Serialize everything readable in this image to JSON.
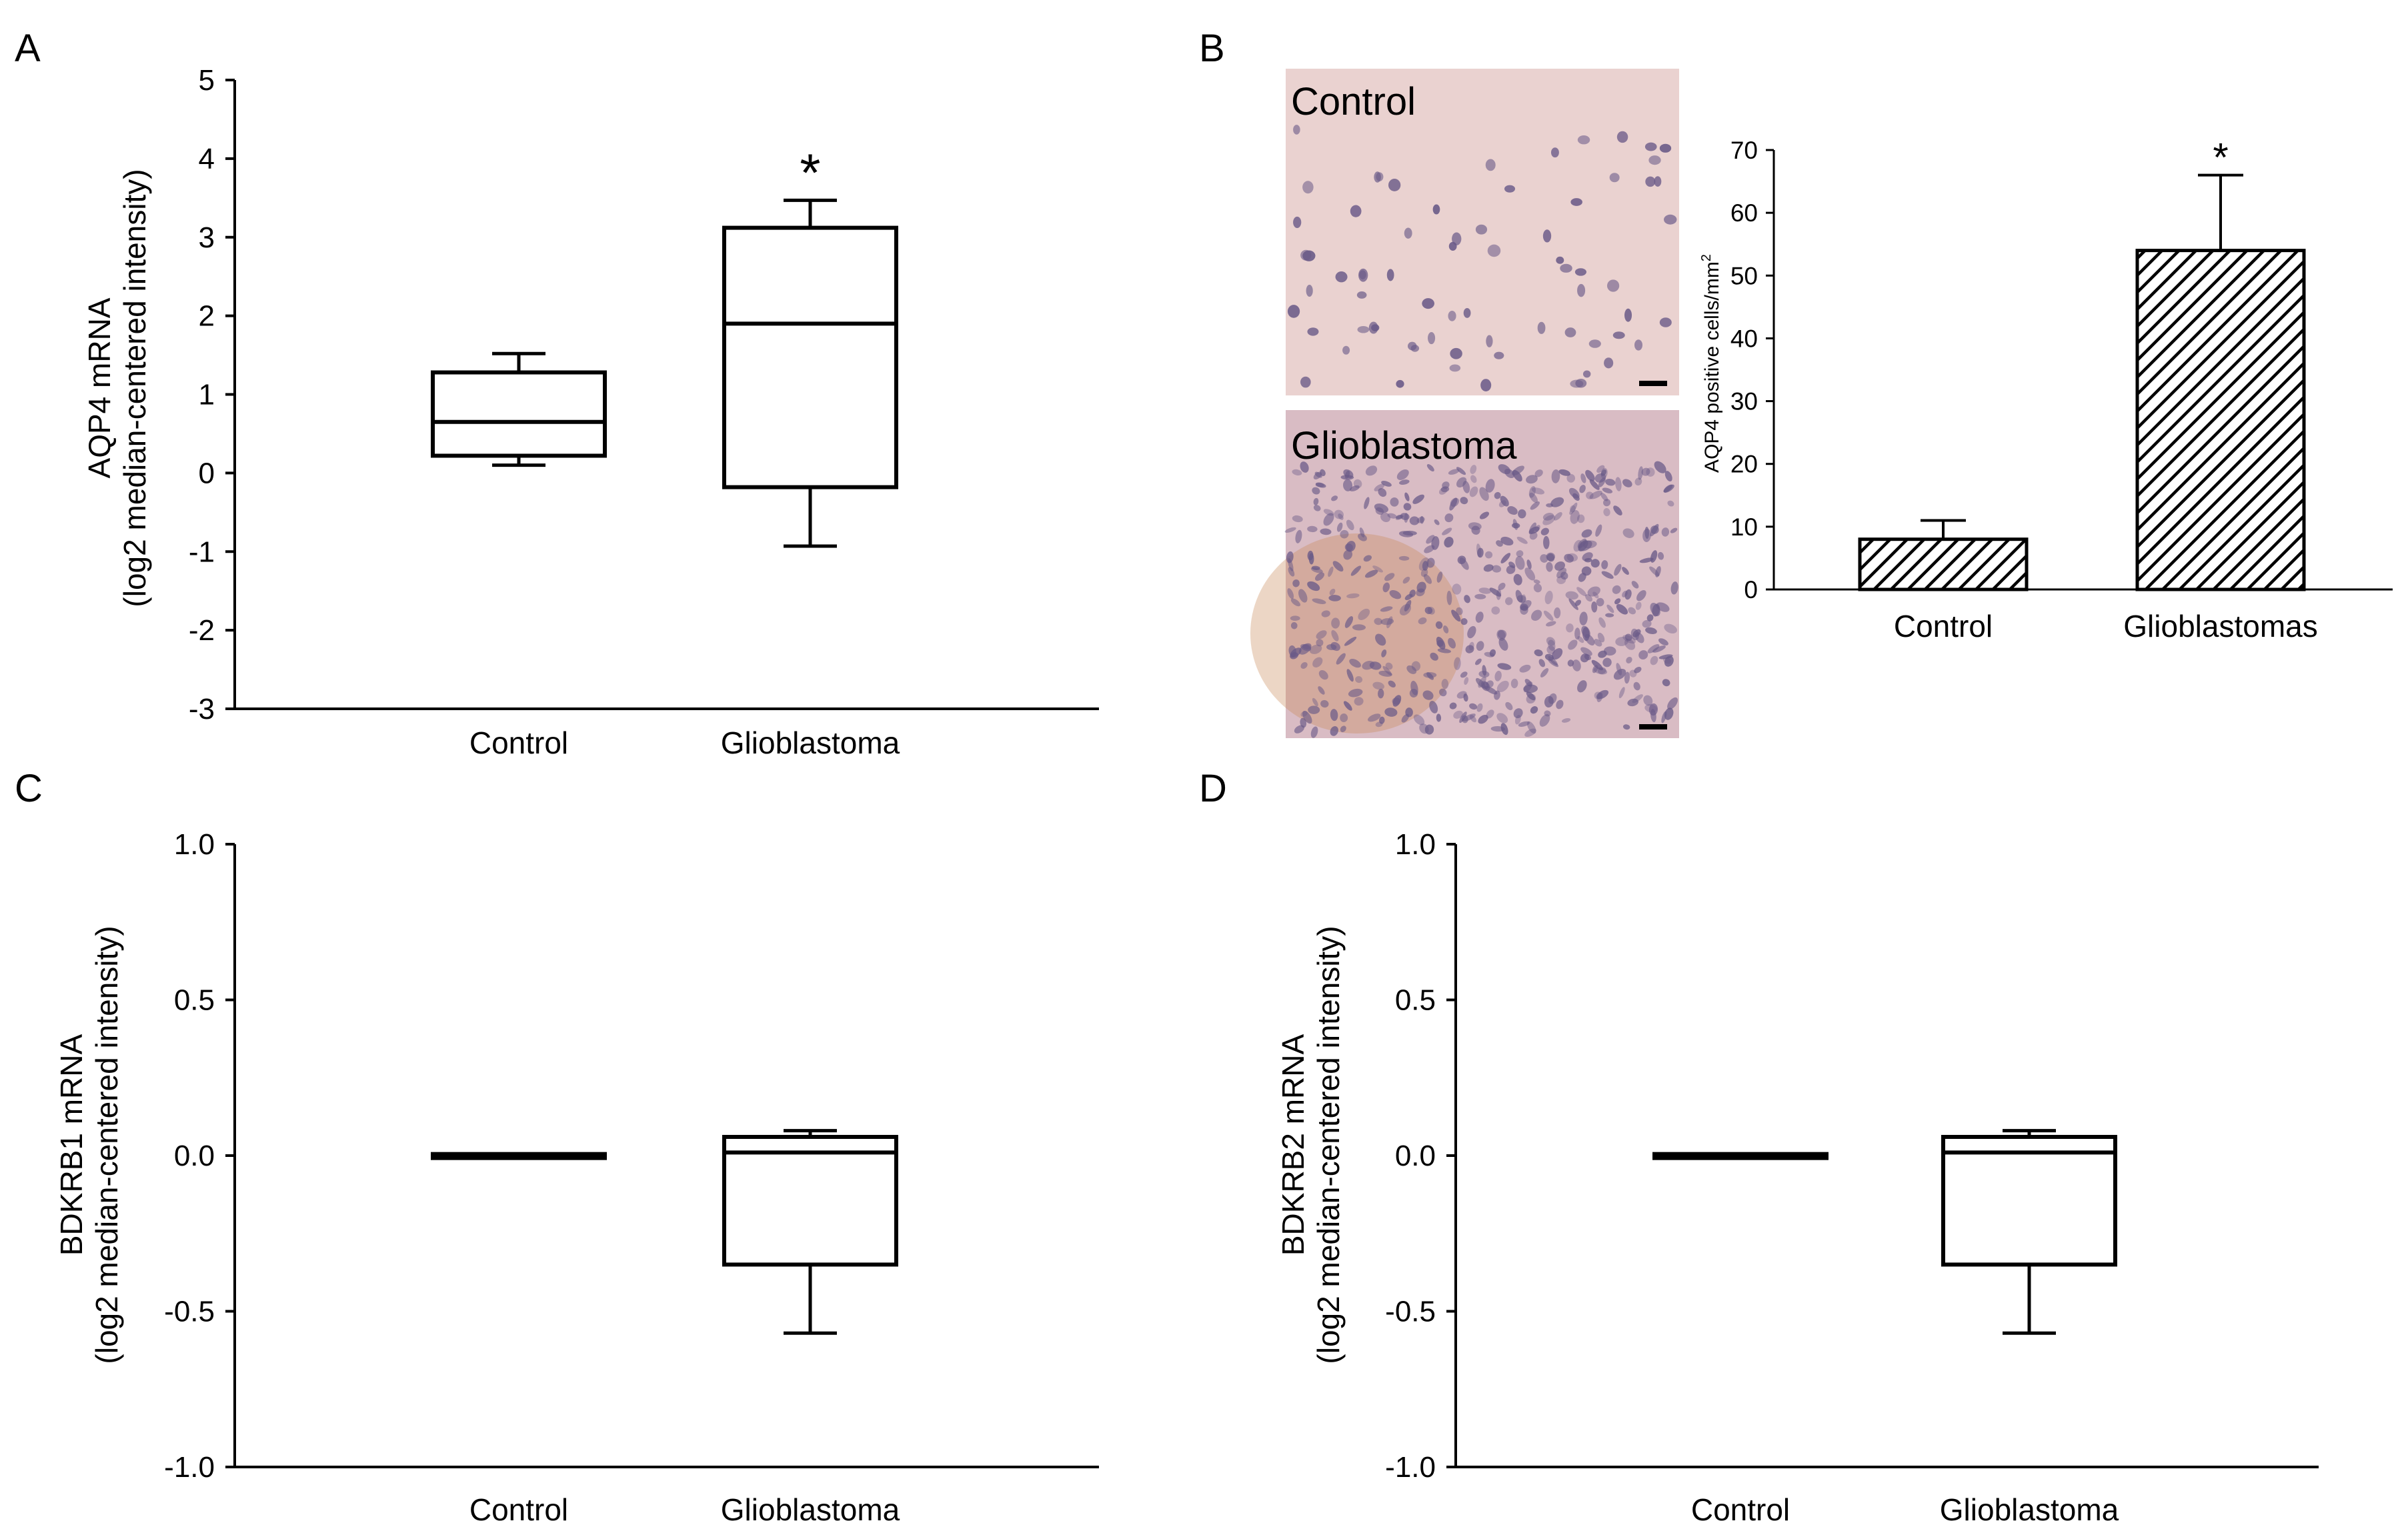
{
  "panels": {
    "A": {
      "letter": "A",
      "chart_data": {
        "type": "box",
        "categories": [
          "Control",
          "Glioblastoma"
        ],
        "ylabel_line1": "AQP4 mRNA",
        "ylabel_line2": "(log2 median-centered intensity)",
        "ylim": [
          -3,
          5
        ],
        "yticks": [
          -3,
          -2,
          -1,
          0,
          1,
          2,
          3,
          4,
          5
        ],
        "ytick_labels": [
          "-3",
          "-2",
          "-1",
          "0",
          "1",
          "2",
          "3",
          "4",
          "5"
        ],
        "boxes": [
          {
            "category": "Control",
            "min": 0.1,
            "q1": 0.22,
            "median": 0.65,
            "q3": 1.28,
            "max": 1.52
          },
          {
            "category": "Glioblastoma",
            "min": -0.93,
            "q1": -0.18,
            "median": 1.9,
            "q3": 3.12,
            "max": 3.47
          }
        ],
        "annotations": [
          {
            "category": "Glioblastoma",
            "text": "*"
          }
        ]
      }
    },
    "B": {
      "letter": "B",
      "micrographs": [
        {
          "label": "Control"
        },
        {
          "label": "Glioblastoma"
        }
      ],
      "chart_data": {
        "type": "bar",
        "categories": [
          "Control",
          "Glioblastomas"
        ],
        "values": [
          8,
          54
        ],
        "errors": [
          3,
          12
        ],
        "ylabel": "AQP4 positive cells/mm",
        "ylabel_sup": "2",
        "ylim": [
          0,
          70
        ],
        "yticks": [
          0,
          10,
          20,
          30,
          40,
          50,
          60,
          70
        ],
        "ytick_labels": [
          "0",
          "10",
          "20",
          "30",
          "40",
          "50",
          "60",
          "70"
        ],
        "annotations": [
          {
            "category": "Glioblastomas",
            "text": "*"
          }
        ]
      }
    },
    "C": {
      "letter": "C",
      "chart_data": {
        "type": "box",
        "categories": [
          "Control",
          "Glioblastoma"
        ],
        "ylabel_line1": "BDKRB1 mRNA",
        "ylabel_line2": "(log2 median-centered intensity)",
        "ylim": [
          -1.0,
          1.0
        ],
        "yticks": [
          -1.0,
          -0.5,
          0.0,
          0.5,
          1.0
        ],
        "ytick_labels": [
          "-1.0",
          "-0.5",
          "0.0",
          "0.5",
          "1.0"
        ],
        "boxes": [
          {
            "category": "Control",
            "min": -0.005,
            "q1": -0.005,
            "median": 0.0,
            "q3": 0.005,
            "max": 0.005
          },
          {
            "category": "Glioblastoma",
            "min": -0.57,
            "q1": -0.35,
            "median": 0.01,
            "q3": 0.06,
            "max": 0.08
          }
        ]
      }
    },
    "D": {
      "letter": "D",
      "chart_data": {
        "type": "box",
        "categories": [
          "Control",
          "Glioblastoma"
        ],
        "ylabel_line1": "BDKRB2 mRNA",
        "ylabel_line2": "(log2 median-centered intensity)",
        "ylim": [
          -1.0,
          1.0
        ],
        "yticks": [
          -1.0,
          -0.5,
          0.0,
          0.5,
          1.0
        ],
        "ytick_labels": [
          "-1.0",
          "-0.5",
          "0.0",
          "0.5",
          "1.0"
        ],
        "boxes": [
          {
            "category": "Control",
            "min": -0.005,
            "q1": -0.005,
            "median": 0.0,
            "q3": 0.005,
            "max": 0.005
          },
          {
            "category": "Glioblastoma",
            "min": -0.57,
            "q1": -0.35,
            "median": 0.01,
            "q3": 0.06,
            "max": 0.08
          }
        ]
      }
    }
  },
  "colors": {
    "axis": "#000000",
    "box_fill": "#ffffff",
    "control_tissue": "#ead2d0",
    "glioblastoma_tissue": "#d9bcc4",
    "nucleus": "#6a5a88"
  }
}
